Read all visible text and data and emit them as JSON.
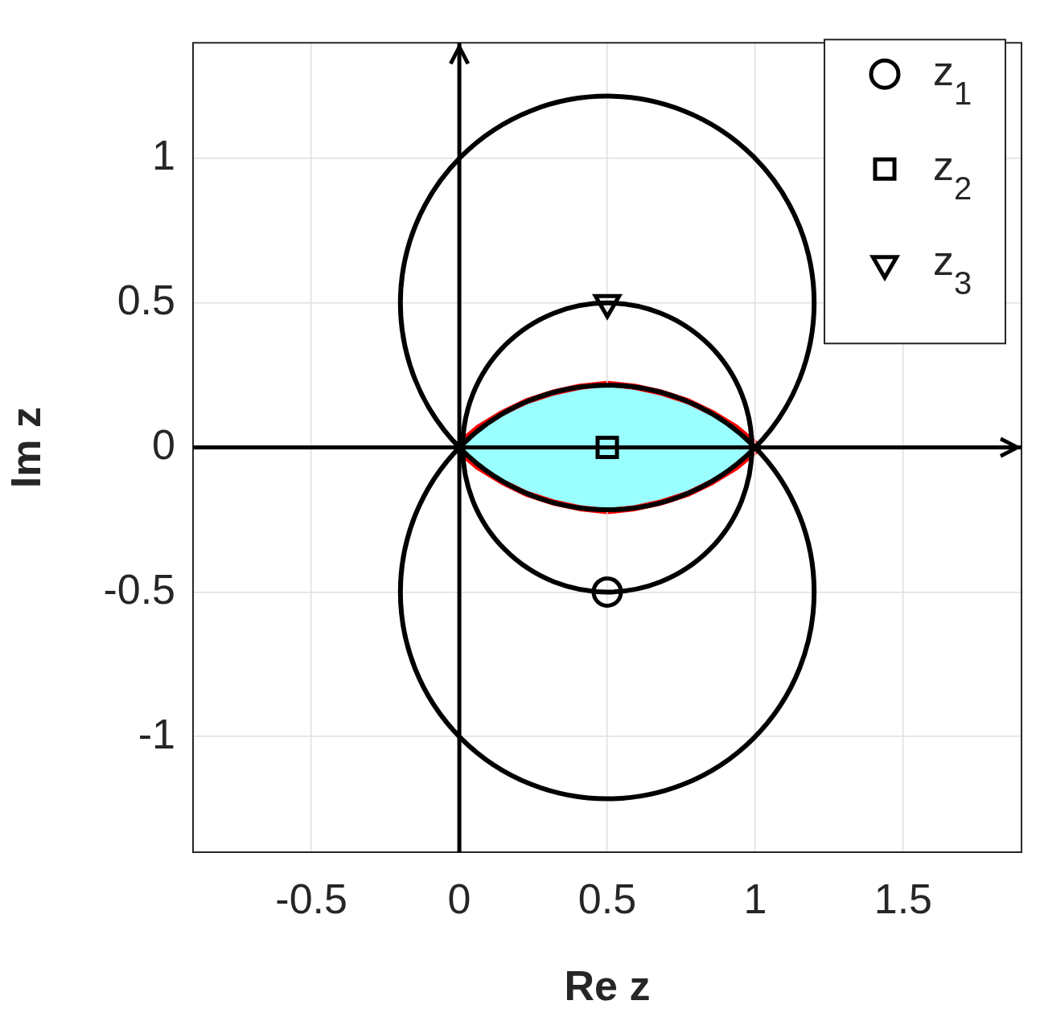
{
  "chart_data": {
    "type": "scatter",
    "xlabel": "Re z",
    "ylabel": "Im z",
    "xlim": [
      -0.9,
      1.9
    ],
    "ylim": [
      -1.4,
      1.4
    ],
    "xticks": [
      -0.5,
      0,
      0.5,
      1,
      1.5
    ],
    "yticks": [
      -1,
      -0.5,
      0,
      0.5,
      1
    ],
    "grid": true,
    "legend": "top right",
    "series": [
      {
        "type": "area",
        "color": "#99ffff",
        "x": [
          1,
          0.93,
          0.85,
          0.77,
          0.68,
          0.59,
          0.5,
          0.41,
          0.32,
          0.23,
          0.15,
          0.07,
          0,
          0.07,
          0.15,
          0.23,
          0.32,
          0.41,
          0.5,
          0.59,
          0.68,
          0.77,
          0.85,
          0.93,
          1
        ],
        "values": [
          0,
          0.06,
          0.11,
          0.15,
          0.18,
          0.2,
          0.21,
          0.2,
          0.18,
          0.15,
          0.11,
          0.06,
          0,
          -0.06,
          -0.11,
          -0.15,
          -0.18,
          -0.2,
          -0.21,
          -0.2,
          -0.18,
          -0.15,
          -0.11,
          -0.06,
          0
        ]
      },
      {
        "name": "z$_{1}$",
        "color": "#000000",
        "marker": "circle",
        "x": [
          0.5
        ],
        "values": [
          -0.5
        ]
      },
      {
        "name": "z$_{2}$",
        "color": "#000000",
        "marker": "square",
        "x": [
          0.5
        ],
        "values": [
          0
        ]
      },
      {
        "name": "z$_{3}$",
        "color": "#000000",
        "marker": "triangle",
        "x": [
          0.5
        ],
        "values": [
          0.5
        ]
      }
    ]
  }
}
